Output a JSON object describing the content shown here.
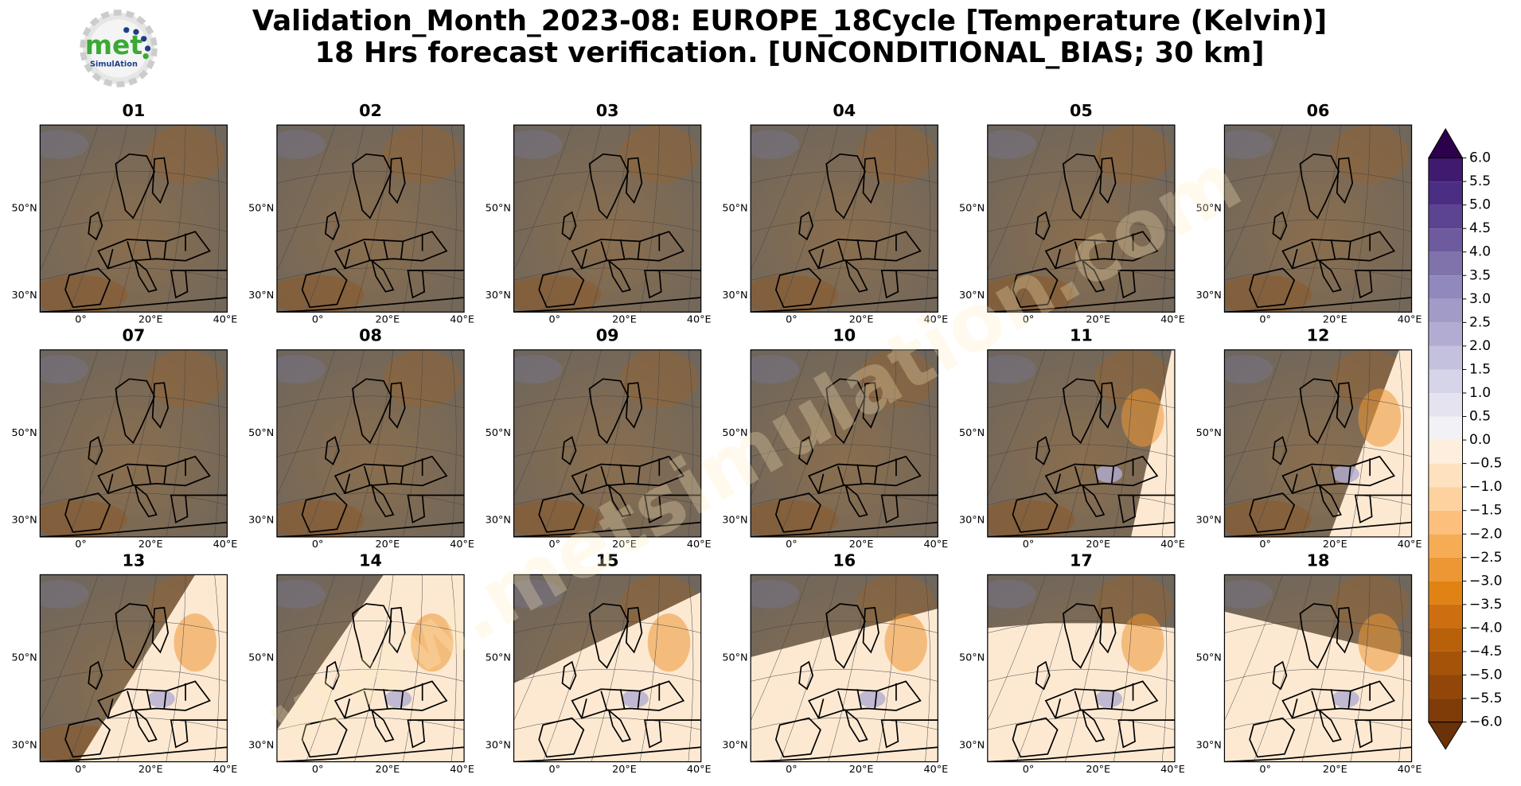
{
  "title_lines": [
    "Validation_Month_2023-08: EUROPE_18Cycle [Temperature (Kelvin)]",
    "18 Hrs forecast verification. [UNCONDITIONAL_BIAS; 30 km]"
  ],
  "logo": {
    "word": "met",
    "subword": "SimulAtion"
  },
  "watermark": "www.metsimulation.com",
  "panels": [
    "01",
    "02",
    "03",
    "04",
    "05",
    "06",
    "07",
    "08",
    "09",
    "10",
    "11",
    "12",
    "13",
    "14",
    "15",
    "16",
    "17",
    "18"
  ],
  "lat_labels": [
    "50°N",
    "30°N"
  ],
  "lon_labels": [
    "0°",
    "20°E",
    "40°E"
  ],
  "colorbar": {
    "lim": [
      -6,
      6
    ],
    "ticks": [
      {
        "value": -6,
        "label": "−6.0"
      },
      {
        "value": -5.5,
        "label": "−5.5"
      },
      {
        "value": -5,
        "label": "−5.0"
      },
      {
        "value": -4.5,
        "label": "−4.5"
      },
      {
        "value": -4,
        "label": "−4.0"
      },
      {
        "value": -3.5,
        "label": "−3.5"
      },
      {
        "value": -3,
        "label": "−3.0"
      },
      {
        "value": -2.5,
        "label": "−2.5"
      },
      {
        "value": -2,
        "label": "−2.0"
      },
      {
        "value": -1.5,
        "label": "−1.5"
      },
      {
        "value": -1,
        "label": "−1.0"
      },
      {
        "value": -0.5,
        "label": "−0.5"
      },
      {
        "value": 0,
        "label": "0.0"
      },
      {
        "value": 0.5,
        "label": "0.5"
      },
      {
        "value": 1,
        "label": "1.0"
      },
      {
        "value": 1.5,
        "label": "1.5"
      },
      {
        "value": 2,
        "label": "2.0"
      },
      {
        "value": 2.5,
        "label": "2.5"
      },
      {
        "value": 3,
        "label": "3.0"
      },
      {
        "value": 3.5,
        "label": "3.5"
      },
      {
        "value": 4,
        "label": "4.0"
      },
      {
        "value": 4.5,
        "label": "4.5"
      },
      {
        "value": 5,
        "label": "5.0"
      },
      {
        "value": 5.5,
        "label": "5.5"
      },
      {
        "value": 6,
        "label": "6.0"
      }
    ],
    "colors": [
      "#7f3b08",
      "#924709",
      "#a6530a",
      "#b9600b",
      "#cd6f10",
      "#e08214",
      "#ec9734",
      "#f6ac55",
      "#fdc07c",
      "#fdd29f",
      "#fee1bf",
      "#fdeede",
      "#f2f1f5",
      "#e4e3ef",
      "#d5d4e8",
      "#c4c1de",
      "#b2acd2",
      "#a29bc8",
      "#9189bd",
      "#8073ac",
      "#6e5a9f",
      "#5d4492",
      "#4b2d84",
      "#3f1a6e"
    ],
    "under_color": "#6b3107",
    "over_color": "#2d004b"
  }
}
